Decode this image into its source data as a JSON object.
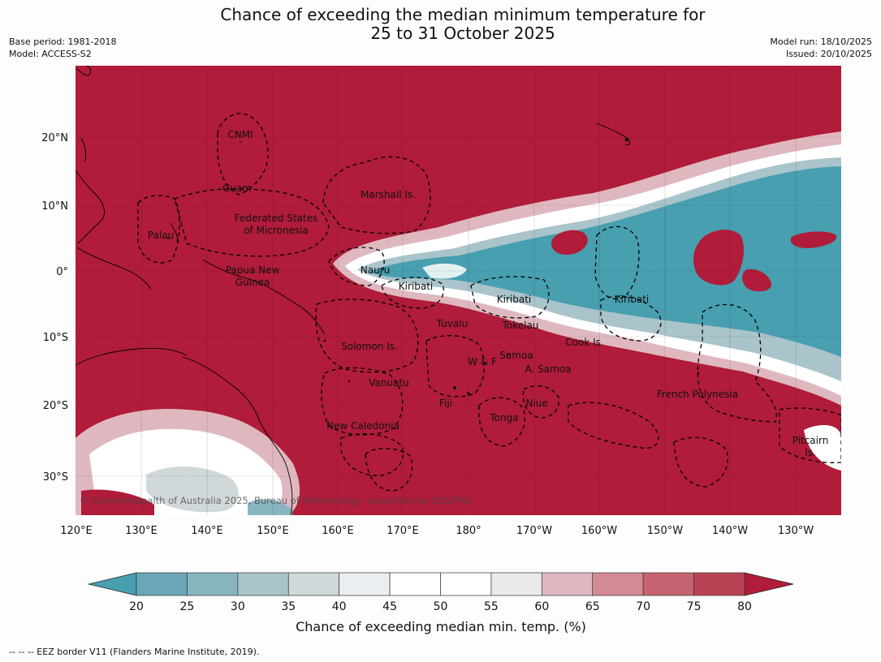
{
  "header": {
    "title_line1": "Chance of exceeding the median minimum temperature for",
    "title_line2": "25 to 31 October 2025",
    "base_period": "Base period: 1981-2018",
    "model": "Model: ACCESS-S2",
    "model_run": "Model run: 18/10/2025",
    "issued": "Issued: 20/10/2025"
  },
  "map": {
    "copyright": "© Commonwealth of Australia 2025, Bureau of Meteorology, supported by COSPPac",
    "lon_ticks": [
      "120°E",
      "130°E",
      "140°E",
      "150°E",
      "160°E",
      "170°E",
      "180°",
      "170°W",
      "160°W",
      "150°W",
      "140°W",
      "130°W"
    ],
    "lat_ticks": [
      "20°N",
      "10°N",
      "0°",
      "10°S",
      "20°S",
      "30°S"
    ],
    "region_labels": [
      {
        "name": "cnmi",
        "text": "CNMI"
      },
      {
        "name": "guam",
        "text": "Guam"
      },
      {
        "name": "marshall-is",
        "text": "Marshall Is."
      },
      {
        "name": "fsm-line1",
        "text": "Federated States"
      },
      {
        "name": "fsm-line2",
        "text": "of Micronesia"
      },
      {
        "name": "palau",
        "text": "Palau"
      },
      {
        "name": "nauru",
        "text": "Nauru"
      },
      {
        "name": "png-line1",
        "text": "Papua New"
      },
      {
        "name": "png-line2",
        "text": "Guinea"
      },
      {
        "name": "kiribati-west",
        "text": "Kiribati"
      },
      {
        "name": "kiribati-central",
        "text": "Kiribati"
      },
      {
        "name": "kiribati-east",
        "text": "Kiribati"
      },
      {
        "name": "tuvalu",
        "text": "Tuvalu"
      },
      {
        "name": "tokelau",
        "text": "Tokelau"
      },
      {
        "name": "cook-is",
        "text": "Cook Is."
      },
      {
        "name": "solomon-is",
        "text": "Solomon Is."
      },
      {
        "name": "w-and-f",
        "text": "W & F"
      },
      {
        "name": "samoa",
        "text": "Samoa"
      },
      {
        "name": "a-samoa",
        "text": "A. Samoa"
      },
      {
        "name": "vanuatu",
        "text": "Vanuatu"
      },
      {
        "name": "fiji",
        "text": "Fiji"
      },
      {
        "name": "niue",
        "text": "Niue"
      },
      {
        "name": "french-polynesia",
        "text": "French Polynesia"
      },
      {
        "name": "tonga",
        "text": "Tonga"
      },
      {
        "name": "new-caledonia",
        "text": "New Caledonia"
      },
      {
        "name": "pitcairn-line1",
        "text": "Pitcairn"
      },
      {
        "name": "pitcairn-line2",
        "text": "Is."
      }
    ]
  },
  "colorbar": {
    "label": "Chance of exceeding median min. temp. (%)",
    "ticks": [
      "20",
      "25",
      "30",
      "35",
      "40",
      "45",
      "50",
      "55",
      "60",
      "65",
      "70",
      "75",
      "80"
    ],
    "low_extend_color": "#479fb0",
    "high_extend_color": "#b01c39",
    "bins": [
      "#6aa6b5",
      "#89b5c1",
      "#a9c4ca",
      "#d0d8da",
      "#e9eff0",
      "#ffffff",
      "#ffffff",
      "#ebe9ea",
      "#dfb8bf",
      "#d38a95",
      "#c56371",
      "#b84354"
    ]
  },
  "footnote": "--  --  -- EEZ border V11 (Flanders Marine Institute, 2019).",
  "colors": {
    "red": "#b01c39",
    "teal": "#479fb0",
    "light": "#dfb8bf"
  }
}
